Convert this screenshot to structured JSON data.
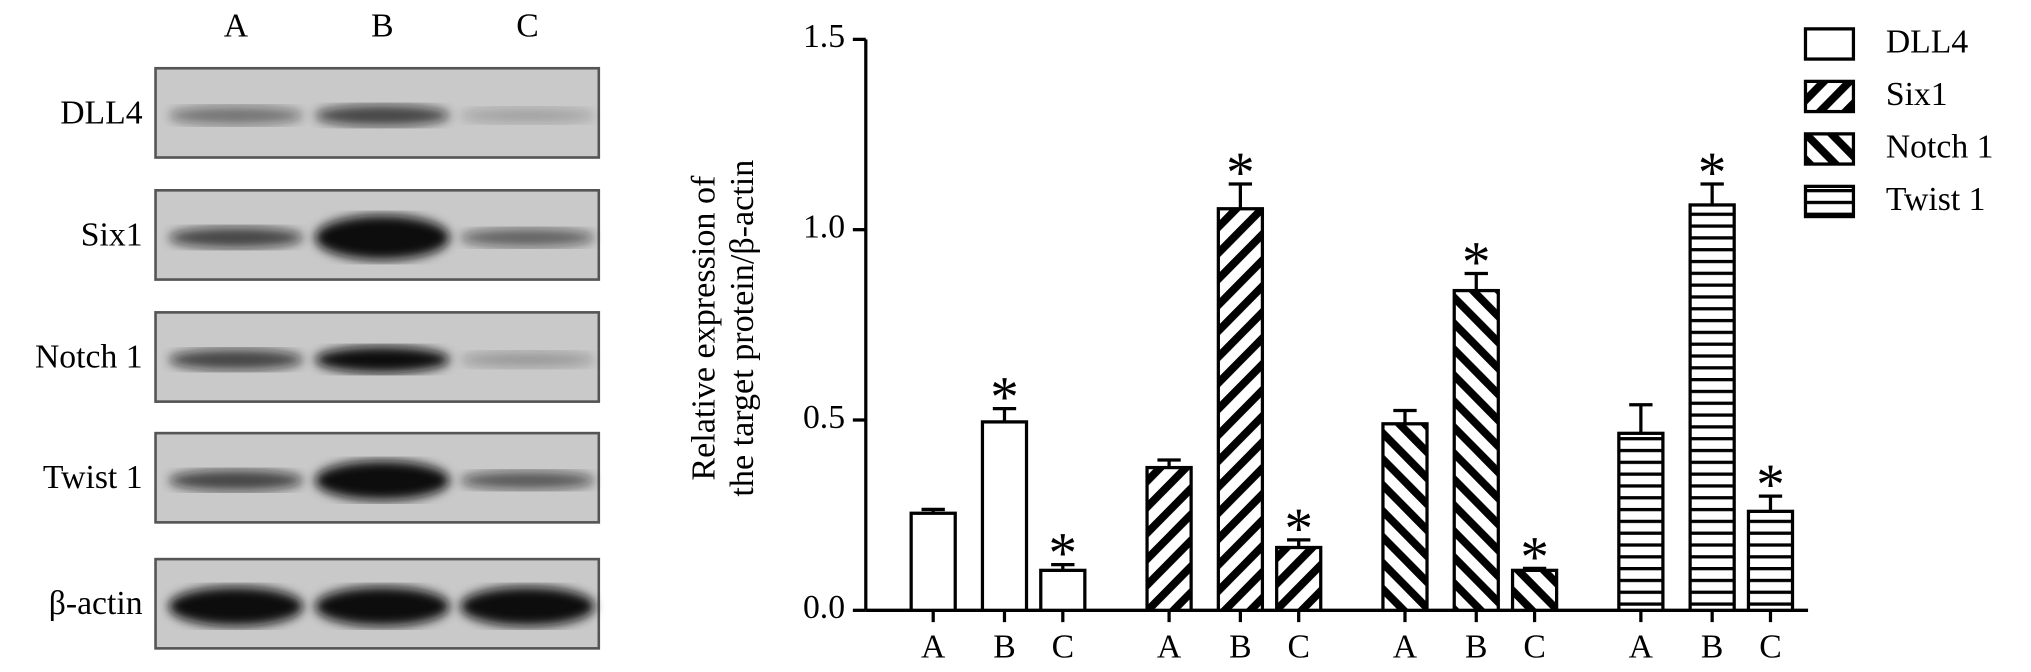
{
  "blot": {
    "columns": [
      "A",
      "B",
      "C"
    ],
    "rows": [
      "DLL4",
      "Six1",
      "Notch 1",
      "Twist 1",
      "β-actin"
    ]
  },
  "chart_data": {
    "type": "bar",
    "ylabel": [
      "Relative expression of",
      "the target protein/β-actin"
    ],
    "categories": [
      "A",
      "B",
      "C"
    ],
    "series": [
      {
        "name": "DLL4",
        "color": "#000000",
        "pattern": "none",
        "values": [
          0.255,
          0.495,
          0.105
        ],
        "errors": [
          0.01,
          0.035,
          0.015
        ],
        "markers": [
          null,
          "*",
          "*"
        ]
      },
      {
        "name": "Six1",
        "color": "#000000",
        "pattern": "forward-diagonal",
        "values": [
          0.375,
          1.055,
          0.165
        ],
        "errors": [
          0.02,
          0.065,
          0.02
        ],
        "markers": [
          null,
          "*",
          "*"
        ]
      },
      {
        "name": "Notch 1",
        "color": "#000000",
        "pattern": "back-diagonal",
        "values": [
          0.49,
          0.84,
          0.105
        ],
        "errors": [
          0.035,
          0.045,
          0.005
        ],
        "markers": [
          null,
          "*",
          "*"
        ]
      },
      {
        "name": "Twist 1",
        "color": "#000000",
        "pattern": "horizontal",
        "values": [
          0.465,
          1.065,
          0.26
        ],
        "errors": [
          0.075,
          0.055,
          0.04
        ],
        "markers": [
          null,
          "*",
          "*"
        ]
      }
    ],
    "ylim": [
      0,
      1.5
    ],
    "yticks": [
      {
        "value": 0,
        "label": "0.0"
      },
      {
        "value": 0.5,
        "label": "0.5"
      },
      {
        "value": 1,
        "label": "1.0"
      },
      {
        "value": 1.5,
        "label": "1.5"
      }
    ],
    "legend": "top-right"
  }
}
